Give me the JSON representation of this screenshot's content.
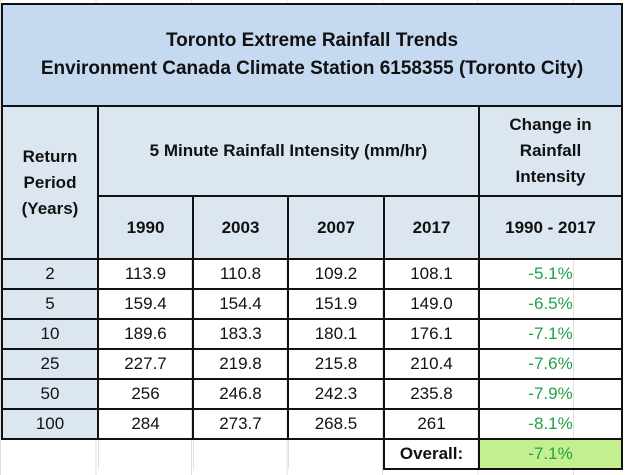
{
  "title": {
    "line1": "Toronto Extreme Rainfall Trends",
    "line2": "Environment Canada Climate Station 6158355 (Toronto City)"
  },
  "headers": {
    "return_period": [
      "Return",
      "Period",
      "(Years)"
    ],
    "intensity": "5 Minute Rainfall Intensity (mm/hr)",
    "change": [
      "Change in",
      "Rainfall",
      "Intensity"
    ],
    "years": [
      "1990",
      "2003",
      "2007",
      "2017"
    ],
    "change_range": "1990 - 2017"
  },
  "rows": [
    {
      "period": "2",
      "values": [
        "113.9",
        "110.8",
        "109.2",
        "108.1"
      ],
      "change": "-5.1%"
    },
    {
      "period": "5",
      "values": [
        "159.4",
        "154.4",
        "151.9",
        "149.0"
      ],
      "change": "-6.5%"
    },
    {
      "period": "10",
      "values": [
        "189.6",
        "183.3",
        "180.1",
        "176.1"
      ],
      "change": "-7.1%"
    },
    {
      "period": "25",
      "values": [
        "227.7",
        "219.8",
        "215.8",
        "210.4"
      ],
      "change": "-7.6%"
    },
    {
      "period": "50",
      "values": [
        "256",
        "246.8",
        "242.3",
        "235.8"
      ],
      "change": "-7.9%"
    },
    {
      "period": "100",
      "values": [
        "284",
        "273.7",
        "268.5",
        "261"
      ],
      "change": "-8.1%"
    }
  ],
  "overall": {
    "label": "Overall:",
    "value": "-7.1%"
  },
  "colors": {
    "title_bg": "#c5d9f1",
    "header_bg": "#dce6f1",
    "negative_text": "#22a04a",
    "overall_bg": "#c4ef8e"
  }
}
